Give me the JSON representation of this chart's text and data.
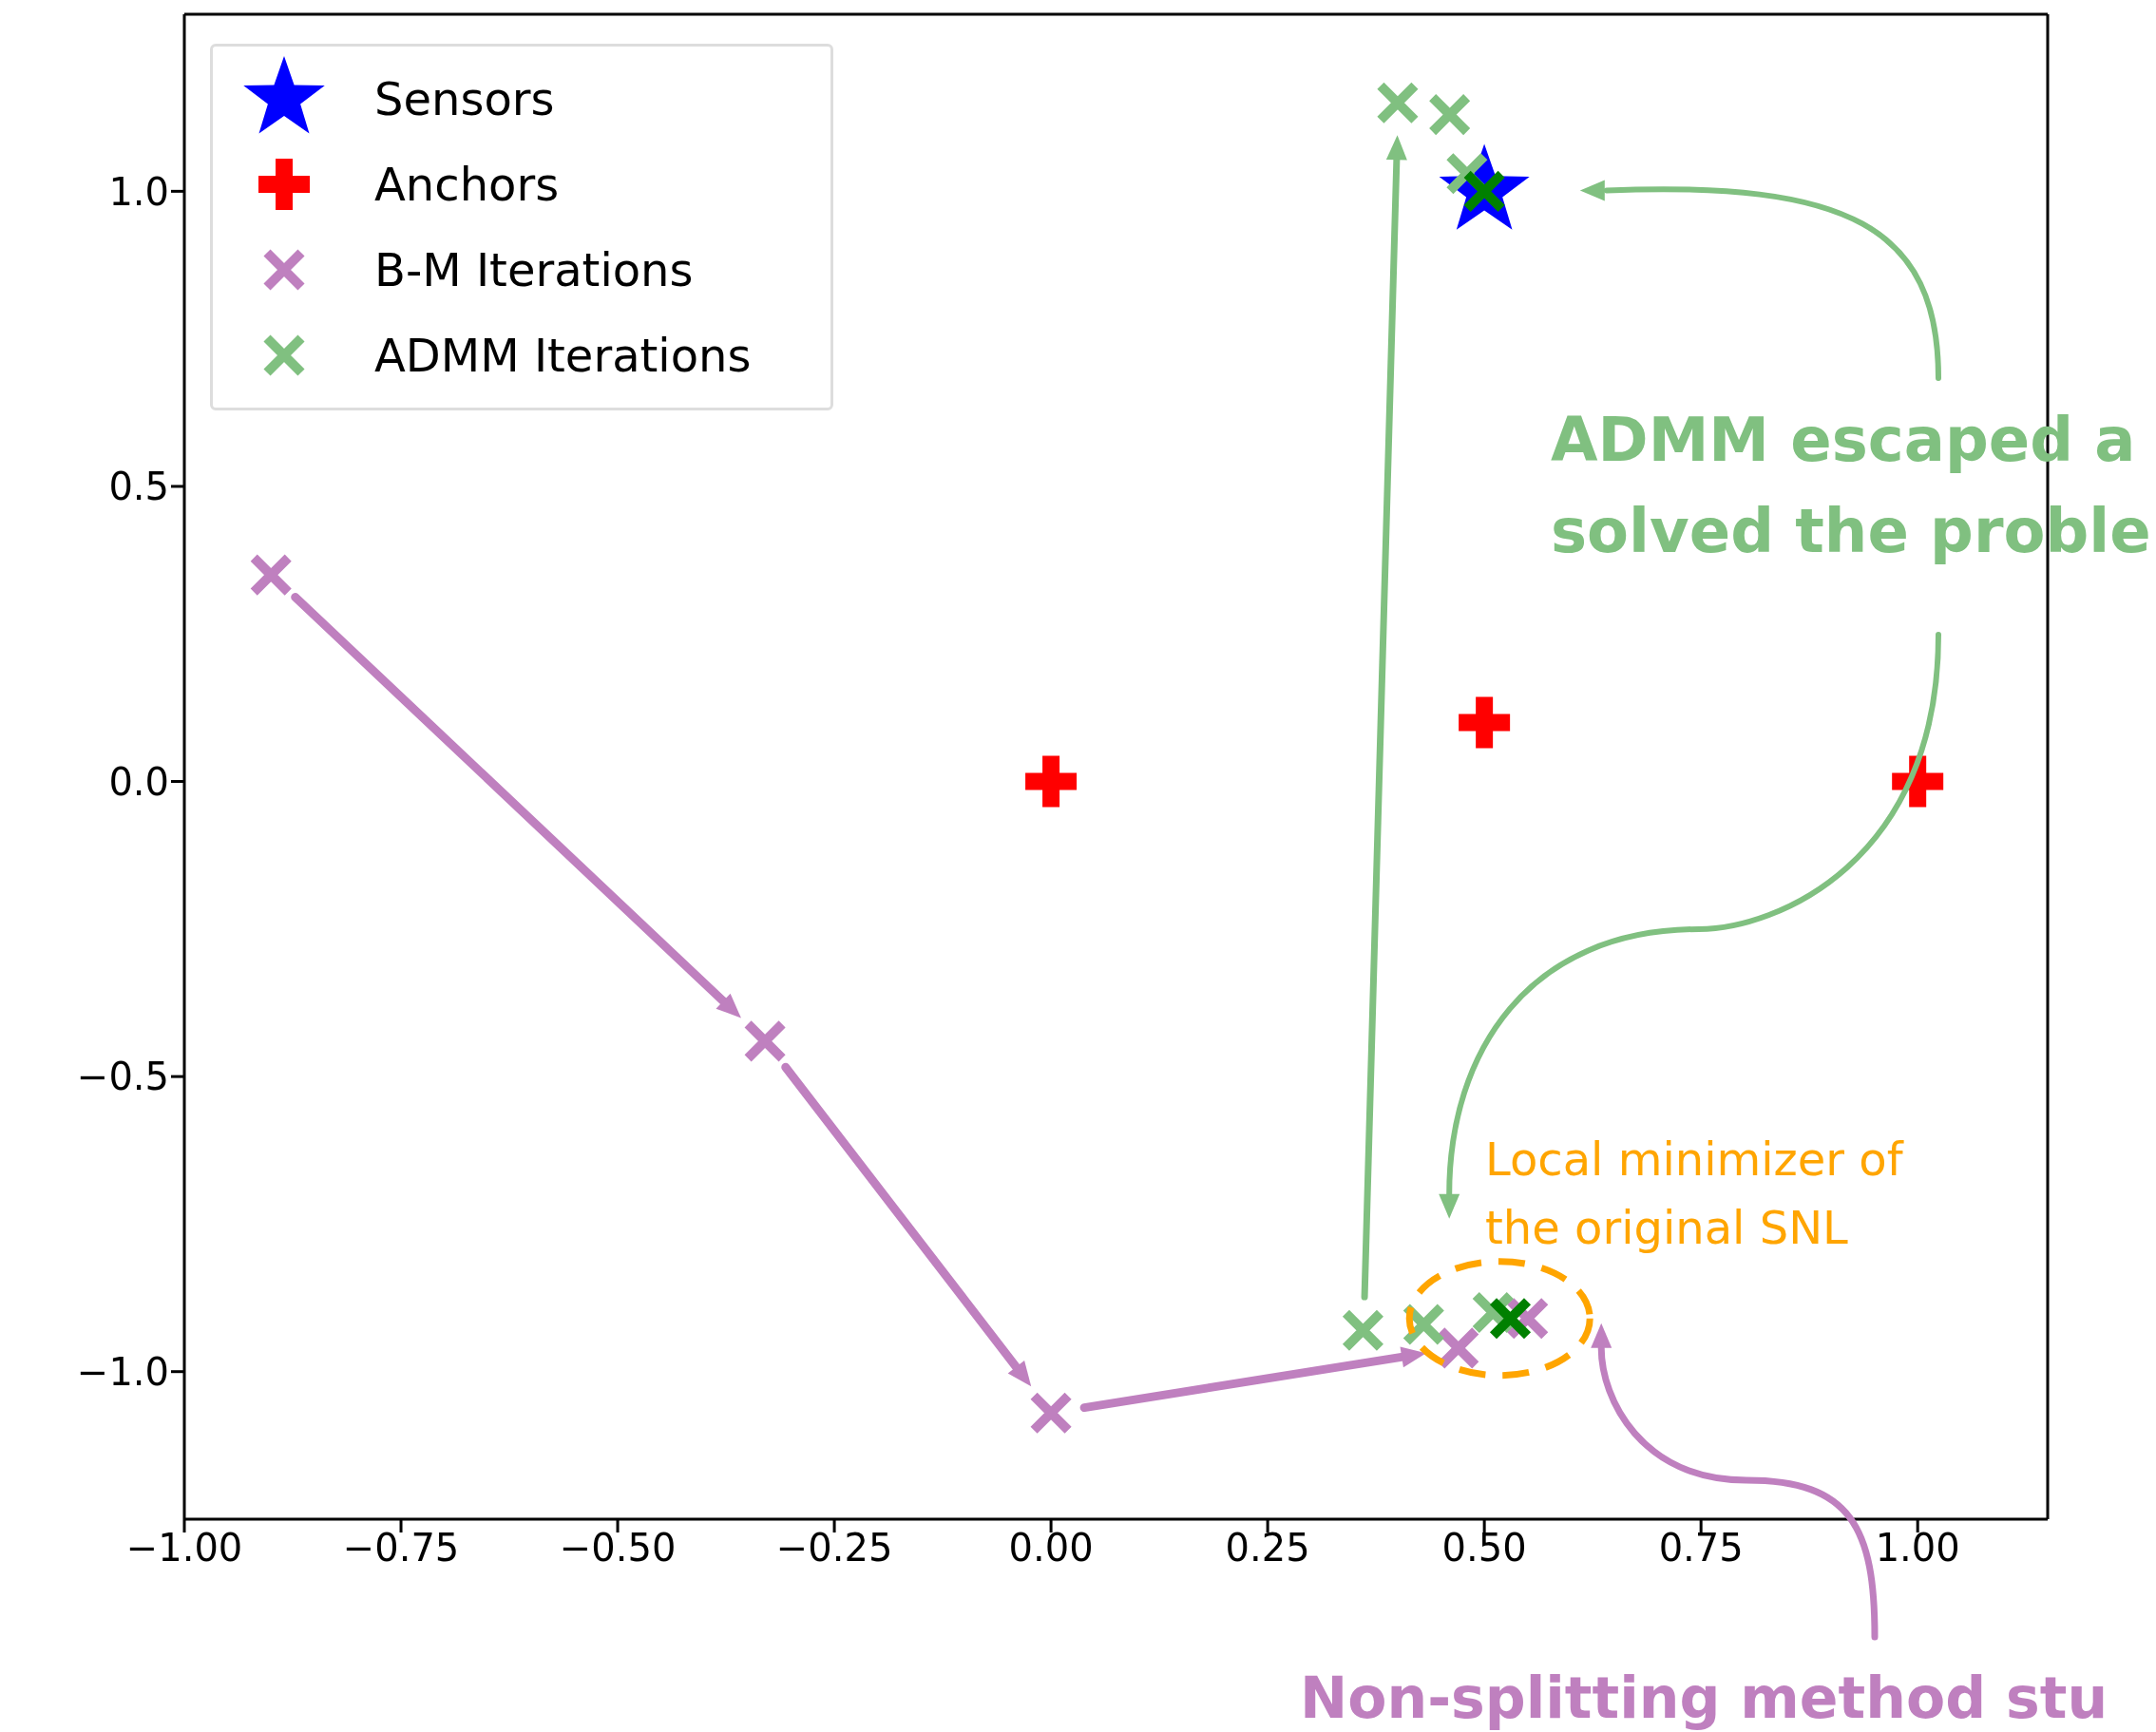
{
  "chart_data": {
    "type": "scatter",
    "xlim": [
      -1,
      1.15
    ],
    "ylim": [
      -1.25,
      1.3
    ],
    "xticks": [
      {
        "value": -1,
        "label": "−1.00"
      },
      {
        "value": -0.75,
        "label": "−0.75"
      },
      {
        "value": -0.5,
        "label": "−0.50"
      },
      {
        "value": -0.25,
        "label": "−0.25"
      },
      {
        "value": 0,
        "label": "0.00"
      },
      {
        "value": 0.25,
        "label": "0.25"
      },
      {
        "value": 0.5,
        "label": "0.50"
      },
      {
        "value": 0.75,
        "label": "0.75"
      },
      {
        "value": 1,
        "label": "1.00"
      }
    ],
    "yticks": [
      {
        "value": -1,
        "label": "−1.0"
      },
      {
        "value": -0.5,
        "label": "−0.5"
      },
      {
        "value": 0,
        "label": "0.0"
      },
      {
        "value": 0.5,
        "label": "0.5"
      },
      {
        "value": 1,
        "label": "1.0"
      }
    ],
    "legend": "top left",
    "series": [
      {
        "name": "Sensors",
        "color": "#0000ff",
        "marker": "star",
        "x": [
          0.5
        ],
        "values": [
          1.0
        ]
      },
      {
        "name": "Anchors",
        "color": "#ff0000",
        "marker": "plus",
        "x": [
          0,
          0.5,
          1
        ],
        "values": [
          0,
          0.1,
          0
        ]
      },
      {
        "name": "B-M Iterations",
        "color": "#bf80bf",
        "marker": "cross",
        "x": [
          -0.9,
          -0.33,
          0.0,
          0.47,
          0.55
        ],
        "values": [
          0.35,
          -0.44,
          -1.07,
          -0.96,
          -0.91
        ]
      },
      {
        "name": "ADMM Iterations",
        "color": "#80c080",
        "marker": "cross",
        "x": [
          0.36,
          0.4,
          0.46,
          0.48,
          0.43,
          0.51
        ],
        "values": [
          -0.93,
          1.15,
          1.13,
          1.03,
          -0.92,
          -0.9
        ]
      },
      {
        "color": "#008000",
        "marker": "cross",
        "x": [
          0.53,
          0.5
        ],
        "values": [
          -0.91,
          1.0
        ]
      }
    ],
    "annotations": [
      "ADMM escaped a\nsolved the proble",
      {
        "text": "Local minimizer of\nthe original SNL",
        "x": 0.53,
        "y": -0.91
      },
      "Non-splitting method stu"
    ]
  }
}
